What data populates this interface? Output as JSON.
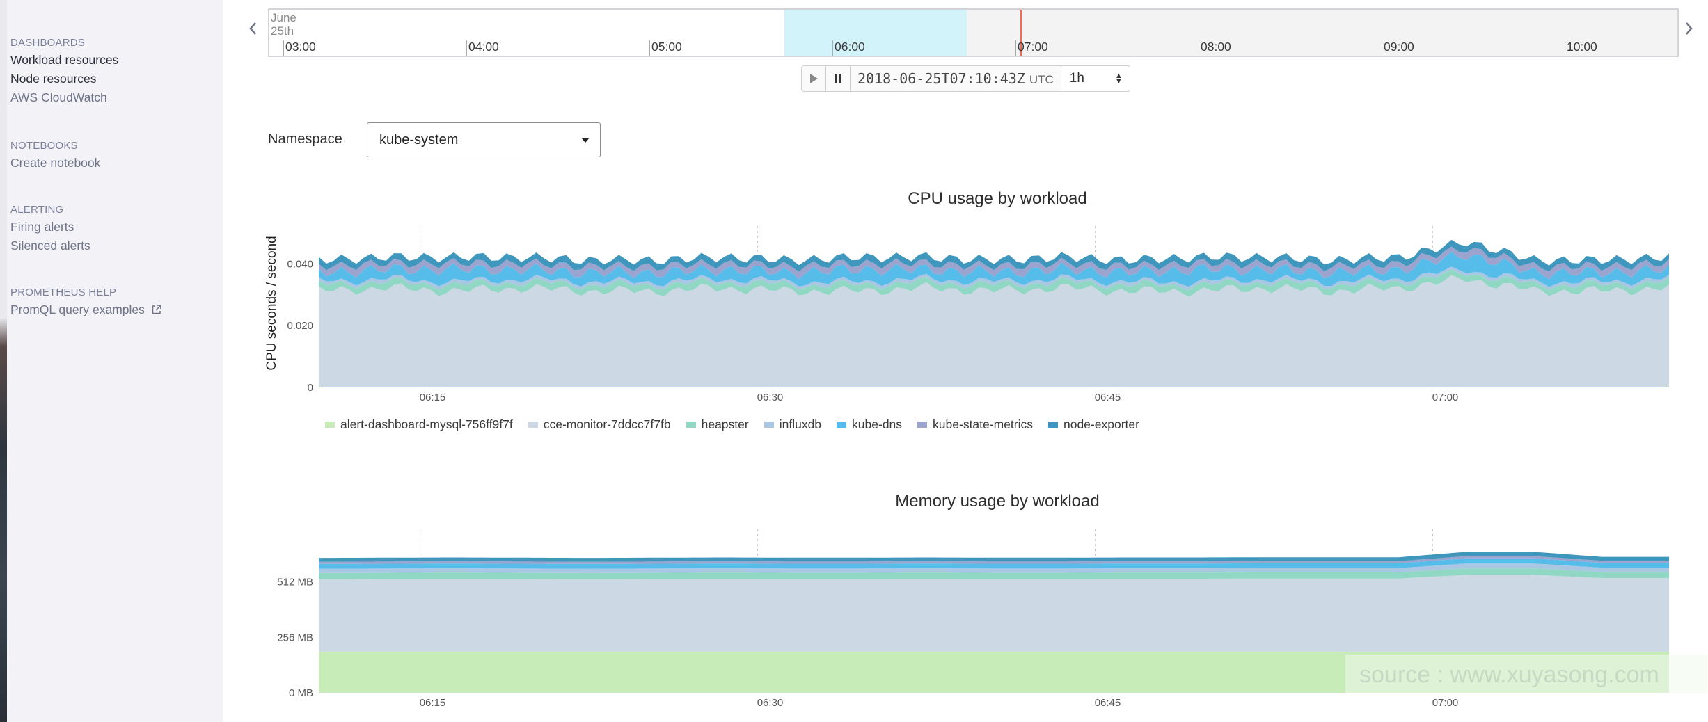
{
  "sidebar": {
    "sections": [
      {
        "heading": "DASHBOARDS",
        "items": [
          {
            "label": "Workload resources",
            "muted": false
          },
          {
            "label": "Node resources",
            "muted": false
          },
          {
            "label": "AWS CloudWatch",
            "muted": true
          }
        ]
      },
      {
        "heading": "NOTEBOOKS",
        "items": [
          {
            "label": "Create notebook",
            "muted": true
          }
        ]
      },
      {
        "heading": "ALERTING",
        "items": [
          {
            "label": "Firing alerts",
            "muted": true
          },
          {
            "label": "Silenced alerts",
            "muted": true
          }
        ]
      },
      {
        "heading": "PROMETHEUS HELP",
        "items": [
          {
            "label": "PromQL query examples",
            "muted": true,
            "icon": "external-link-icon"
          }
        ]
      }
    ]
  },
  "timeline": {
    "date_month": "June",
    "date_day": "25th",
    "hours": [
      "03:00",
      "04:00",
      "05:00",
      "06:00",
      "07:00",
      "08:00",
      "09:00",
      "10:00"
    ],
    "prev_icon": "chevron-left-icon",
    "next_icon": "chevron-right-icon"
  },
  "time_controls": {
    "play_icon": "play-icon",
    "pause_icon": "pause-icon",
    "datetime": "2018-06-25T07:10:43Z",
    "tz": "UTC",
    "range": "1h"
  },
  "namespace": {
    "label": "Namespace",
    "value": "kube-system"
  },
  "colors": {
    "alert-dashboard-mysql-756ff9f7f": "#c8ecb8",
    "cce-monitor-7ddcc7f7fb": "#cdd8e5",
    "heapster": "#90d7c4",
    "influxdb": "#a9c6e2",
    "kube-dns": "#56bcea",
    "kube-state-metrics": "#9ba3cf",
    "node-exporter": "#3f97bd"
  },
  "chart_data": [
    {
      "type": "area",
      "stacked": true,
      "title": "CPU usage by workload",
      "ylabel": "CPU seconds / second",
      "xlabel": "",
      "x_ticks": [
        "06:15",
        "06:30",
        "06:45",
        "07:00"
      ],
      "y_ticks": [
        "0",
        "0.020",
        "0.040"
      ],
      "ylim": [
        0,
        0.05
      ],
      "x": [
        "06:11",
        "06:14",
        "06:17",
        "06:20",
        "06:23",
        "06:26",
        "06:29",
        "06:32",
        "06:35",
        "06:38",
        "06:41",
        "06:44",
        "06:47",
        "06:50",
        "06:53",
        "06:56",
        "06:59",
        "07:02",
        "07:05",
        "07:08",
        "07:10"
      ],
      "series": [
        {
          "name": "alert-dashboard-mysql-756ff9f7f",
          "values": [
            0.0002,
            0.0002,
            0.0002,
            0.0002,
            0.0002,
            0.0002,
            0.0002,
            0.0002,
            0.0002,
            0.0002,
            0.0002,
            0.0002,
            0.0002,
            0.0002,
            0.0002,
            0.0002,
            0.0002,
            0.0002,
            0.0002,
            0.0002,
            0.0002
          ]
        },
        {
          "name": "cce-monitor-7ddcc7f7fb",
          "values": [
            0.031,
            0.032,
            0.031,
            0.032,
            0.031,
            0.031,
            0.032,
            0.031,
            0.031,
            0.032,
            0.031,
            0.032,
            0.031,
            0.031,
            0.032,
            0.031,
            0.032,
            0.035,
            0.031,
            0.031,
            0.032
          ]
        },
        {
          "name": "heapster",
          "values": [
            0.002,
            0.002,
            0.002,
            0.002,
            0.002,
            0.002,
            0.002,
            0.002,
            0.002,
            0.002,
            0.002,
            0.002,
            0.002,
            0.002,
            0.002,
            0.002,
            0.002,
            0.002,
            0.002,
            0.002,
            0.002
          ]
        },
        {
          "name": "influxdb",
          "values": [
            0.001,
            0.001,
            0.001,
            0.001,
            0.001,
            0.001,
            0.001,
            0.001,
            0.001,
            0.001,
            0.001,
            0.001,
            0.001,
            0.001,
            0.001,
            0.001,
            0.001,
            0.001,
            0.001,
            0.001,
            0.001
          ]
        },
        {
          "name": "kube-dns",
          "values": [
            0.003,
            0.003,
            0.004,
            0.003,
            0.003,
            0.003,
            0.003,
            0.003,
            0.004,
            0.003,
            0.003,
            0.003,
            0.003,
            0.004,
            0.003,
            0.003,
            0.003,
            0.005,
            0.003,
            0.003,
            0.003
          ]
        },
        {
          "name": "kube-state-metrics",
          "values": [
            0.002,
            0.002,
            0.002,
            0.002,
            0.002,
            0.002,
            0.002,
            0.002,
            0.002,
            0.002,
            0.002,
            0.002,
            0.002,
            0.002,
            0.002,
            0.002,
            0.002,
            0.002,
            0.002,
            0.002,
            0.002
          ]
        },
        {
          "name": "node-exporter",
          "values": [
            0.002,
            0.002,
            0.002,
            0.002,
            0.002,
            0.002,
            0.002,
            0.002,
            0.002,
            0.002,
            0.002,
            0.002,
            0.002,
            0.002,
            0.002,
            0.002,
            0.002,
            0.002,
            0.002,
            0.002,
            0.002
          ]
        }
      ]
    },
    {
      "type": "area",
      "stacked": true,
      "title": "Memory usage by workload",
      "ylabel": "",
      "xlabel": "",
      "x_ticks": [
        "06:15",
        "06:30",
        "06:45",
        "07:00"
      ],
      "y_ticks": [
        "0 MB",
        "256 MB",
        "512 MB"
      ],
      "ylim": [
        0,
        768
      ],
      "x": [
        "06:11",
        "06:14",
        "06:17",
        "06:20",
        "06:23",
        "06:26",
        "06:29",
        "06:32",
        "06:35",
        "06:38",
        "06:41",
        "06:44",
        "06:47",
        "06:50",
        "06:53",
        "06:56",
        "06:59",
        "07:00",
        "07:03",
        "07:06",
        "07:10"
      ],
      "series": [
        {
          "name": "alert-dashboard-mysql-756ff9f7f",
          "values": [
            190,
            190,
            190,
            190,
            190,
            190,
            190,
            190,
            190,
            190,
            190,
            190,
            190,
            190,
            190,
            190,
            190,
            190,
            190,
            190,
            190
          ]
        },
        {
          "name": "cce-monitor-7ddcc7f7fb",
          "values": [
            335,
            336,
            337,
            336,
            335,
            336,
            337,
            336,
            336,
            337,
            336,
            336,
            337,
            337,
            338,
            338,
            338,
            355,
            355,
            340,
            340
          ]
        },
        {
          "name": "heapster",
          "values": [
            28,
            28,
            28,
            28,
            28,
            28,
            28,
            28,
            28,
            28,
            28,
            28,
            28,
            28,
            28,
            28,
            28,
            30,
            30,
            28,
            28
          ]
        },
        {
          "name": "influxdb",
          "values": [
            20,
            20,
            20,
            20,
            20,
            20,
            20,
            20,
            20,
            20,
            20,
            20,
            20,
            20,
            20,
            20,
            20,
            22,
            22,
            20,
            20
          ]
        },
        {
          "name": "kube-dns",
          "values": [
            22,
            22,
            22,
            22,
            22,
            22,
            22,
            22,
            22,
            22,
            22,
            22,
            22,
            22,
            22,
            22,
            22,
            24,
            24,
            22,
            22
          ]
        },
        {
          "name": "kube-state-metrics",
          "values": [
            10,
            10,
            10,
            10,
            10,
            10,
            10,
            10,
            10,
            10,
            10,
            10,
            10,
            10,
            10,
            10,
            10,
            10,
            10,
            10,
            10
          ]
        },
        {
          "name": "node-exporter",
          "values": [
            18,
            18,
            18,
            18,
            18,
            18,
            18,
            18,
            18,
            18,
            18,
            18,
            18,
            18,
            18,
            18,
            18,
            20,
            20,
            18,
            18
          ]
        }
      ]
    }
  ],
  "watermark": "source : www.xuyasong.com"
}
